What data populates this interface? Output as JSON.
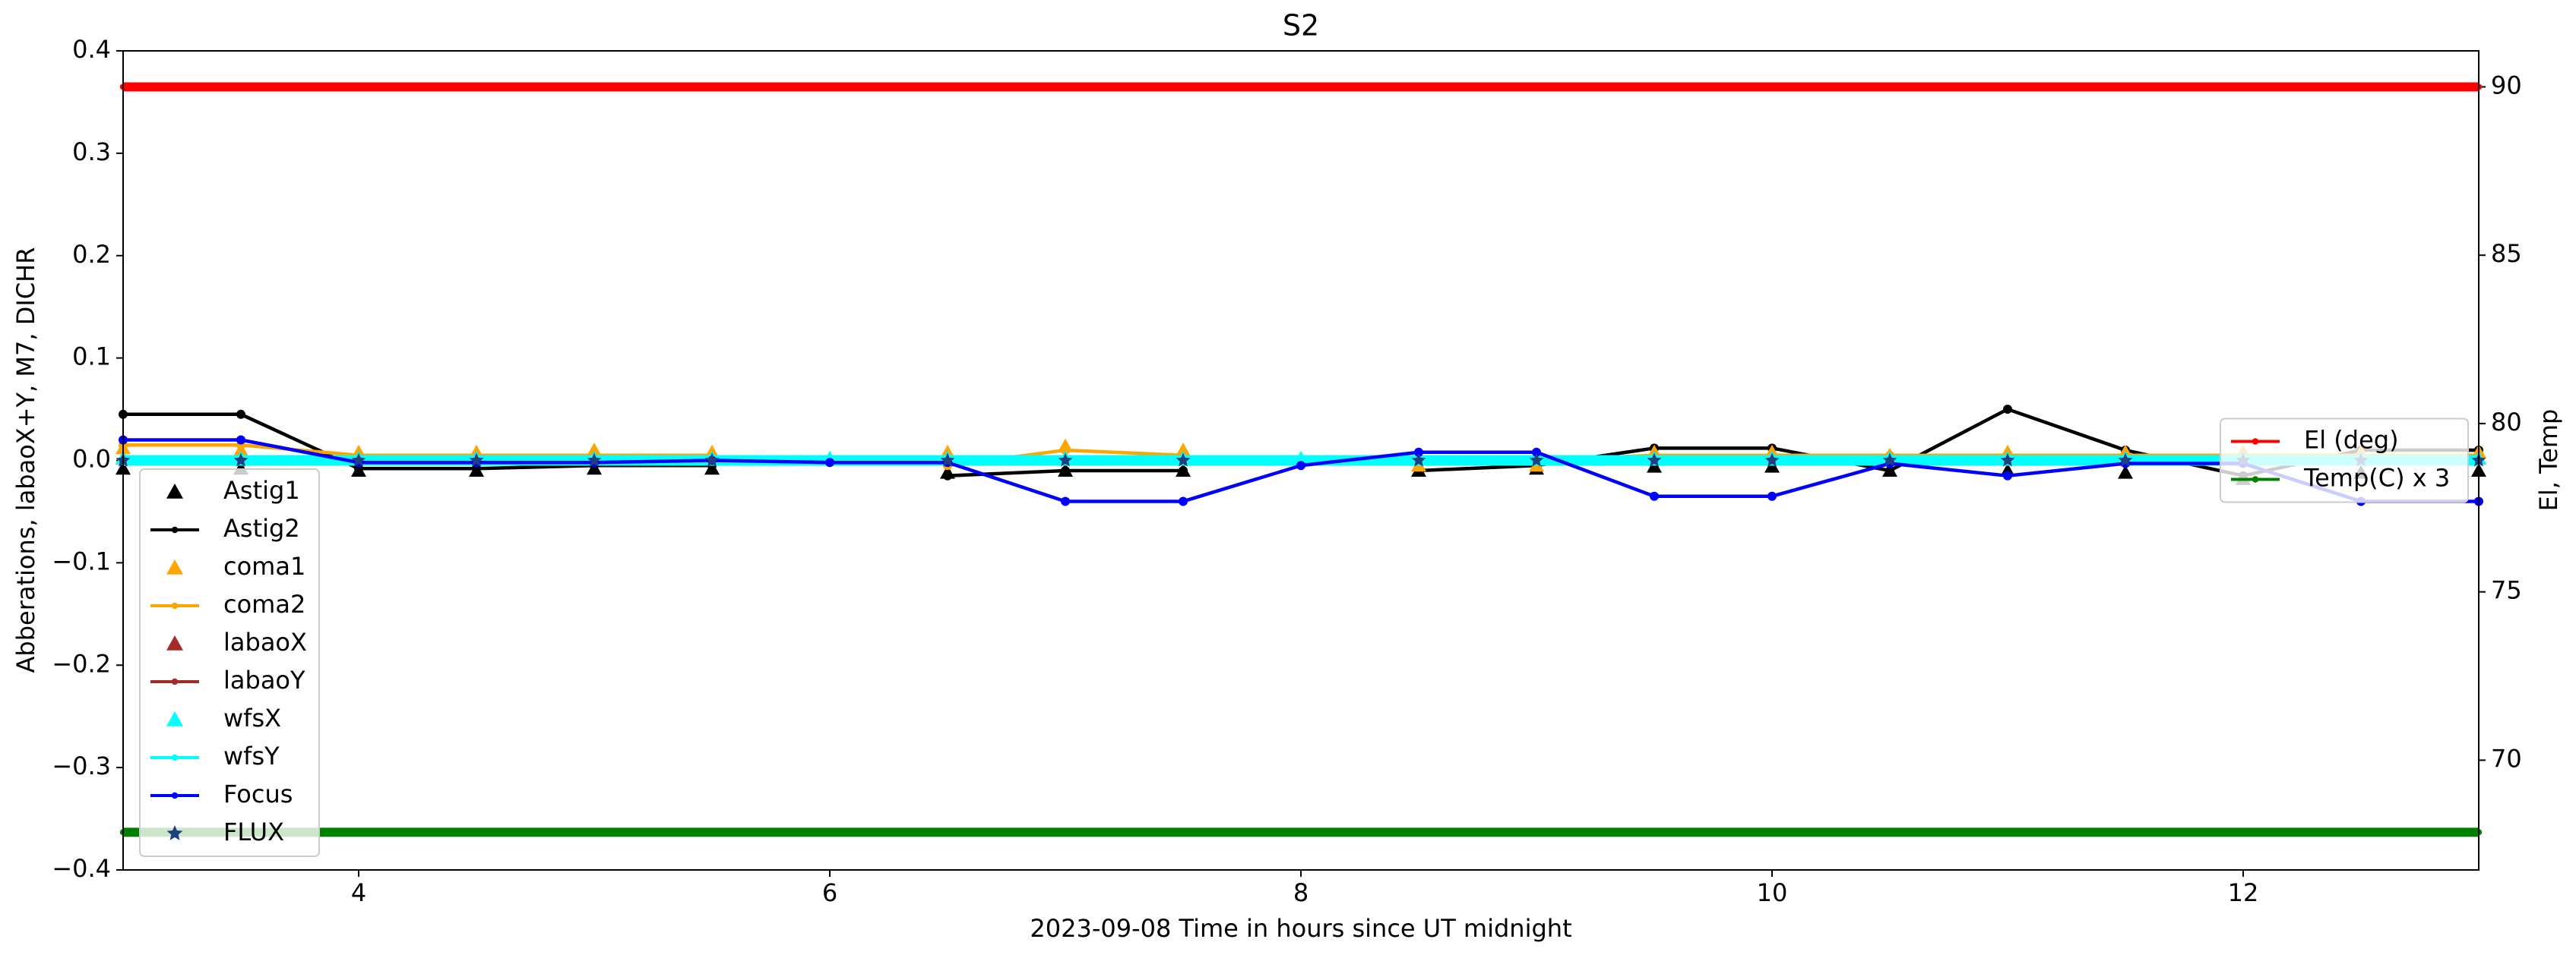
{
  "chart_data": {
    "type": "line",
    "title": "S2",
    "xlabel": "2023-09-08  Time in hours since UT midnight",
    "ylabel": "Abberations, labaoX+Y, M7, DICHR",
    "y2label": "El, Temp",
    "xlim": [
      3,
      13
    ],
    "xticks": [
      4,
      6,
      8,
      10,
      12
    ],
    "ylim": [
      -0.4,
      0.4
    ],
    "yticks": [
      {
        "value": -0.4,
        "label": "−0.4"
      },
      {
        "value": -0.3,
        "label": "−0.3"
      },
      {
        "value": -0.2,
        "label": "−0.2"
      },
      {
        "value": -0.1,
        "label": "−0.1"
      },
      {
        "value": 0,
        "label": "0.0"
      },
      0.1,
      0.2,
      0.3,
      0.4
    ],
    "y2lim": [
      66.74,
      91.07
    ],
    "y2ticks": [
      70,
      75,
      80,
      85,
      90
    ],
    "legend": "lower left",
    "legend2": "center right",
    "x": [
      3,
      3.5,
      4,
      4.5,
      5,
      5.5,
      6,
      6.5,
      7,
      7.5,
      8,
      8.5,
      9,
      9.5,
      10,
      10.5,
      11,
      11.5,
      12,
      12.5,
      13
    ],
    "series": [
      {
        "name": "Astig1",
        "color": "#000000",
        "marker": "triangle",
        "line": false,
        "values": [
          -0.008,
          -0.008,
          -0.01,
          -0.01,
          -0.008,
          -0.008,
          null,
          -0.012,
          -0.01,
          -0.01,
          null,
          -0.01,
          -0.008,
          -0.006,
          -0.006,
          -0.01,
          -0.01,
          -0.012,
          -0.018,
          -0.012,
          -0.01
        ]
      },
      {
        "name": "Astig2",
        "color": "#000000",
        "marker": "circle",
        "line": true,
        "values": [
          0.045,
          0.045,
          -0.008,
          -0.008,
          -0.005,
          -0.005,
          null,
          -0.015,
          -0.01,
          -0.01,
          null,
          -0.01,
          -0.005,
          0.012,
          0.012,
          -0.01,
          0.05,
          0.01,
          -0.015,
          0.01,
          0.01
        ]
      },
      {
        "name": "coma1",
        "color": "#ffa500",
        "marker": "triangle",
        "line": false,
        "values": [
          0.012,
          0.01,
          0.008,
          0.008,
          0.01,
          0.008,
          null,
          0.008,
          0.014,
          0.01,
          null,
          -0.005,
          -0.005,
          0.008,
          0.008,
          0.005,
          0.008,
          0.008,
          0.008,
          0.008,
          0.008
        ]
      },
      {
        "name": "coma2",
        "color": "#ffa500",
        "marker": "circle",
        "line": true,
        "values": [
          0.015,
          0.015,
          0.005,
          0.005,
          0.005,
          0.005,
          null,
          -0.005,
          0.01,
          0.005,
          null,
          0,
          0,
          0.005,
          0.005,
          0.005,
          0.005,
          0.005,
          0.005,
          0.005,
          0.005
        ]
      },
      {
        "name": "labaoX",
        "color": "#a52a2a",
        "marker": "triangle",
        "line": false,
        "values": [
          0.002,
          0.002,
          0.002,
          0.002,
          0.002,
          0.002,
          null,
          0.002,
          0.002,
          0.002,
          null,
          0.002,
          0.002,
          0.002,
          0.002,
          0.002,
          0.002,
          0.002,
          0.002,
          0.002,
          0.002
        ]
      },
      {
        "name": "labaoY",
        "color": "#a52a2a",
        "marker": "circle",
        "line": true,
        "values": [
          0,
          0,
          0,
          0,
          0,
          0,
          null,
          0,
          0,
          0,
          null,
          0,
          0,
          0,
          0,
          0,
          0,
          0,
          0,
          0,
          0
        ]
      },
      {
        "name": "wfsX",
        "color": "#00ffff",
        "marker": "triangle",
        "line": false,
        "values": [
          0.002,
          0.002,
          0.002,
          0.002,
          0.002,
          0.002,
          0.002,
          0.002,
          0.002,
          0.002,
          0.002,
          0.002,
          0.002,
          0.002,
          0.002,
          0.002,
          0.002,
          0.002,
          0.002,
          0.002,
          0.002
        ]
      },
      {
        "name": "wfsY",
        "color": "#00ffff",
        "marker": "circle",
        "line": true,
        "values": [
          0,
          0,
          0,
          0,
          0,
          0,
          0,
          0,
          0,
          0,
          0,
          0,
          0,
          0,
          0,
          0,
          0,
          0,
          0,
          0,
          0
        ]
      },
      {
        "name": "Focus",
        "color": "#0000ff",
        "marker": "circle",
        "line": true,
        "values": [
          0.02,
          0.02,
          -0.002,
          -0.002,
          -0.002,
          0,
          -0.002,
          -0.002,
          -0.04,
          -0.04,
          -0.005,
          0.008,
          0.008,
          -0.035,
          -0.035,
          -0.003,
          -0.015,
          -0.003,
          -0.003,
          -0.04,
          -0.04
        ]
      },
      {
        "name": "FLUX",
        "color": "#1f3f7f",
        "marker": "star",
        "line": false,
        "values": [
          0,
          0,
          0,
          0,
          0,
          0,
          null,
          0,
          0,
          0,
          null,
          0,
          0,
          0,
          0,
          0,
          0,
          0,
          0,
          0,
          0
        ]
      },
      {
        "name": "El (deg)",
        "color": "#ff0000",
        "marker": "circle",
        "line": true,
        "axis": "y2",
        "values": [
          90,
          90,
          90,
          90,
          90,
          90,
          90,
          90,
          90,
          90,
          90,
          90,
          90,
          90,
          90,
          90,
          90,
          90,
          90,
          90,
          90
        ]
      },
      {
        "name": "Temp(C) x 3",
        "color": "#008000",
        "marker": "circle",
        "line": true,
        "axis": "y2",
        "values": [
          67.86,
          67.86,
          67.86,
          67.86,
          67.86,
          67.86,
          67.86,
          67.86,
          67.86,
          67.86,
          67.86,
          67.86,
          67.86,
          67.86,
          67.86,
          67.86,
          67.86,
          67.86,
          67.86,
          67.86,
          67.86
        ]
      }
    ]
  }
}
